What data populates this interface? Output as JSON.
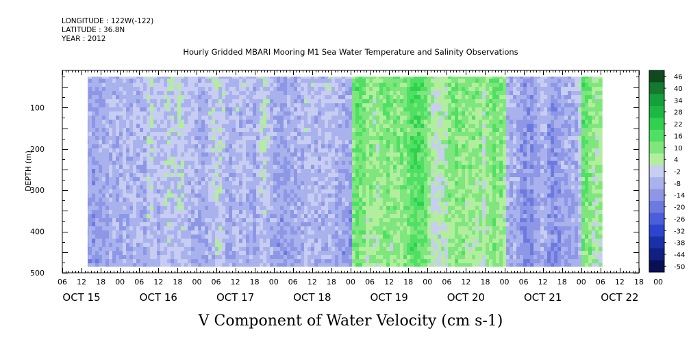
{
  "header": {
    "longitude": "LONGITUDE : 122W(-122)",
    "latitude": "LATITUDE : 36.8N",
    "year": "YEAR : 2012"
  },
  "chart_data": {
    "type": "heatmap",
    "title": "Hourly Gridded MBARI Mooring M1 Sea Water Temperature and Salinity Observations",
    "xlabel": "V Component of Water Velocity (cm s-1)",
    "ylabel": "DEPTH (m)",
    "y_reversed": true,
    "ylim": [
      500,
      10
    ],
    "y_ticks": [
      100,
      200,
      300,
      400,
      500
    ],
    "x_range_hours": [
      "2012-10-15T06:00",
      "2012-10-22T18:00"
    ],
    "data_start": "2012-10-15T12:00",
    "data_end": "2012-10-22T06:00",
    "depth_range": [
      20,
      485
    ],
    "x_hour_labels": [
      "06",
      "12",
      "18",
      "00",
      "06",
      "12",
      "18",
      "00",
      "06",
      "12",
      "18",
      "00",
      "06",
      "12",
      "18",
      "00",
      "06",
      "12",
      "18",
      "00",
      "06",
      "12",
      "18",
      "00",
      "06",
      "12",
      "18",
      "00",
      "06",
      "12",
      "18",
      "00"
    ],
    "x_day_labels": [
      "OCT 15",
      "OCT 16",
      "OCT 17",
      "OCT 18",
      "OCT 19",
      "OCT 20",
      "OCT 21",
      "OCT 22"
    ],
    "colorbar": {
      "labels": [
        "46",
        "40",
        "34",
        "28",
        "22",
        "16",
        "10",
        "4",
        "-2",
        "-8",
        "-14",
        "-20",
        "-26",
        "-32",
        "-38",
        "-44",
        "-50"
      ],
      "colors": [
        "#0f4a1f",
        "#137a2f",
        "#16a03a",
        "#1db844",
        "#2fd14e",
        "#4fe063",
        "#7ee67d",
        "#b2ee9e",
        "#c8cdf2",
        "#a9b2ec",
        "#8d97e6",
        "#6c7ae0",
        "#4a5ed9",
        "#2d44cc",
        "#1b30a8",
        "#0f2080",
        "#090f55"
      ]
    },
    "time_day_means": [
      {
        "day": "OCT 15",
        "mean_v": -6
      },
      {
        "day": "OCT 16",
        "mean_v": -2
      },
      {
        "day": "OCT 17",
        "mean_v": -1
      },
      {
        "day": "OCT 18",
        "mean_v": -4
      },
      {
        "day": "OCT 19",
        "mean_v": 14
      },
      {
        "day": "OCT 20",
        "mean_v": 12
      },
      {
        "day": "OCT 21",
        "mean_v": -6
      },
      {
        "day": "OCT 22",
        "mean_v": 10
      }
    ]
  }
}
